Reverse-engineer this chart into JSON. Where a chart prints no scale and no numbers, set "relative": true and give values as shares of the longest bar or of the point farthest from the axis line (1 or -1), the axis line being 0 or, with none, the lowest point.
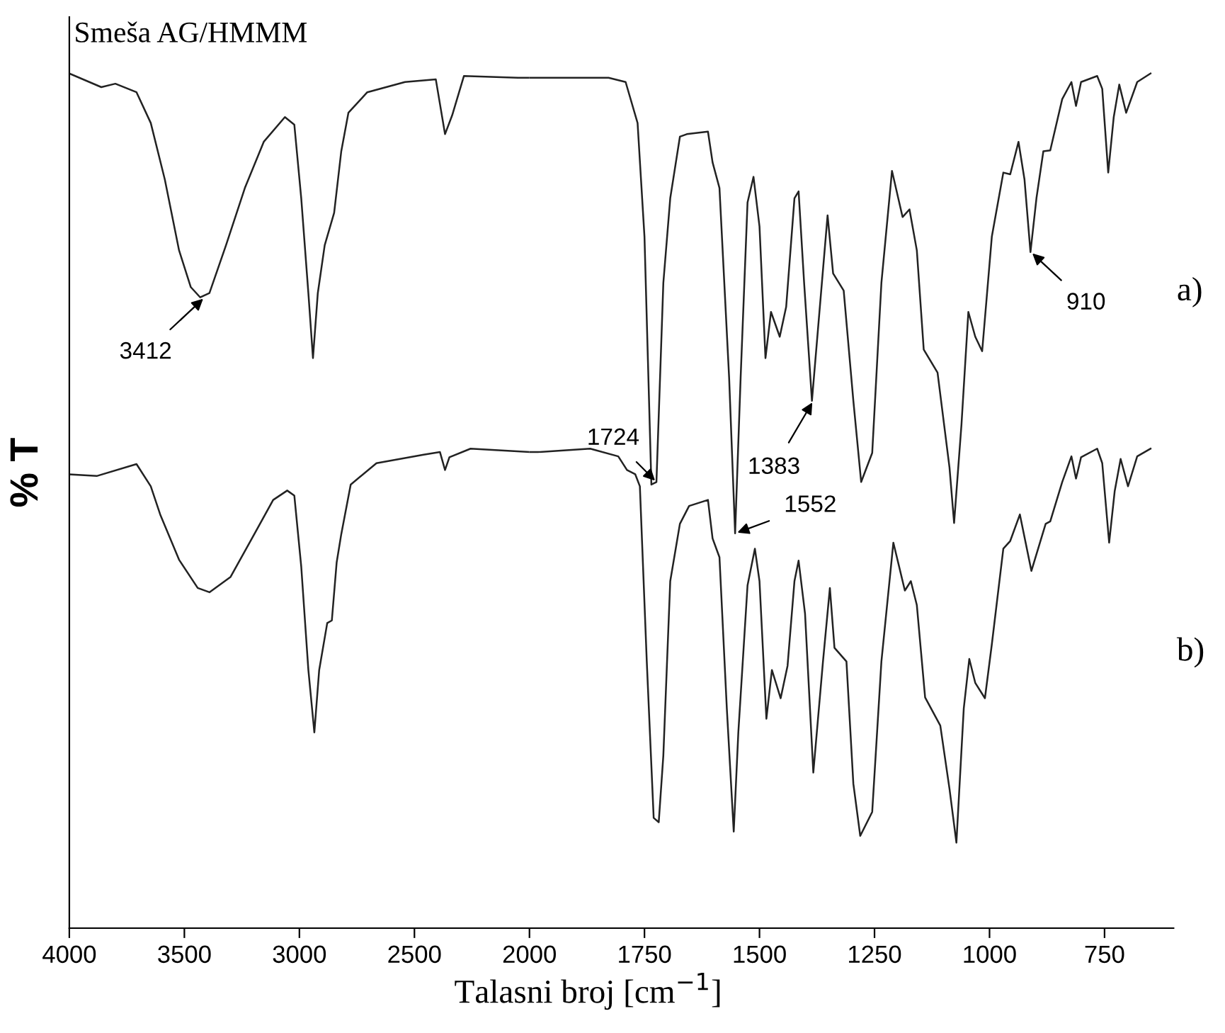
{
  "chart_data": [
    {
      "type": "line",
      "title": "Smeša AG/HMMM",
      "ylabel": "% T",
      "relative": true,
      "xlim": [
        4000,
        2000
      ],
      "xticks": [
        4000,
        3500,
        3000,
        2500,
        2000
      ],
      "grid": false,
      "marker": "none",
      "line_style": "solid",
      "annotations": [
        {
          "text": "3412",
          "x": 3412,
          "y": 0.738
        }
      ],
      "series": [
        {
          "color": "#222222",
          "x": [
            4000,
            3861,
            3800,
            3708,
            3646,
            3585,
            3523,
            3472,
            3431,
            3391,
            3319,
            3237,
            3155,
            3063,
            3022,
            2992,
            2961,
            2941,
            2920,
            2890,
            2849,
            2818,
            2787,
            2705,
            2541,
            2407,
            2367,
            2336,
            2285,
            2050,
            2000
          ],
          "values": [
            1.0,
            0.984,
            0.988,
            0.978,
            0.942,
            0.876,
            0.793,
            0.75,
            0.738,
            0.743,
            0.799,
            0.866,
            0.92,
            0.949,
            0.94,
            0.854,
            0.743,
            0.667,
            0.743,
            0.799,
            0.837,
            0.909,
            0.954,
            0.978,
            0.99,
            0.993,
            0.929,
            0.951,
            0.997,
            0.995,
            0.995
          ]
        },
        {
          "color": "#222222",
          "x": [
            4000,
            3881,
            3708,
            3646,
            3605,
            3523,
            3442,
            3391,
            3299,
            3196,
            3114,
            3053,
            3022,
            2992,
            2961,
            2935,
            2914,
            2879,
            2859,
            2838,
            2818,
            2777,
            2665,
            2460,
            2389,
            2367,
            2348,
            2256,
            2000
          ],
          "values": [
            0.531,
            0.529,
            0.543,
            0.517,
            0.484,
            0.431,
            0.398,
            0.393,
            0.411,
            0.461,
            0.501,
            0.512,
            0.506,
            0.423,
            0.302,
            0.229,
            0.302,
            0.357,
            0.36,
            0.428,
            0.461,
            0.519,
            0.544,
            0.554,
            0.557,
            0.536,
            0.551,
            0.561,
            0.557
          ]
        }
      ]
    },
    {
      "type": "line",
      "xlabel": "Talasni broj [cm$^{−1}$]",
      "relative": true,
      "xlim": [
        2000,
        600
      ],
      "xticks": [
        1750,
        1500,
        1250,
        1000,
        750
      ],
      "grid": false,
      "marker": "none",
      "line_style": "solid",
      "annotations": [
        {
          "text": "1724",
          "x": 1724,
          "y": 0.522
        },
        {
          "text": "1383",
          "x": 1383,
          "y": 0.617
        },
        {
          "text": "1552",
          "x": 1552,
          "y": 0.462
        },
        {
          "text": "910",
          "x": 910,
          "y": 0.791
        }
      ],
      "series": [
        {
          "name": "a)",
          "color": "#222222",
          "x": [
            2000,
            1828,
            1791,
            1765,
            1750,
            1735,
            1724,
            1709,
            1694,
            1673,
            1658,
            1612,
            1602,
            1587,
            1566,
            1553,
            1541,
            1526,
            1513,
            1500,
            1487,
            1475,
            1456,
            1442,
            1424,
            1415,
            1403,
            1386,
            1373,
            1352,
            1340,
            1317,
            1296,
            1279,
            1255,
            1235,
            1212,
            1189,
            1174,
            1158,
            1143,
            1113,
            1087,
            1077,
            1061,
            1046,
            1031,
            1016,
            995,
            970,
            955,
            937,
            924,
            911,
            898,
            883,
            868,
            842,
            822,
            812,
            801,
            766,
            755,
            742,
            730,
            718,
            703,
            679,
            650
          ],
          "values": [
            0.995,
            0.995,
            0.99,
            0.942,
            0.809,
            0.519,
            0.522,
            0.755,
            0.854,
            0.926,
            0.929,
            0.932,
            0.896,
            0.866,
            0.644,
            0.462,
            0.644,
            0.849,
            0.879,
            0.821,
            0.667,
            0.721,
            0.692,
            0.727,
            0.854,
            0.862,
            0.755,
            0.617,
            0.7,
            0.834,
            0.766,
            0.746,
            0.617,
            0.522,
            0.556,
            0.755,
            0.886,
            0.832,
            0.841,
            0.793,
            0.677,
            0.65,
            0.539,
            0.474,
            0.589,
            0.721,
            0.692,
            0.675,
            0.809,
            0.884,
            0.882,
            0.92,
            0.876,
            0.791,
            0.854,
            0.909,
            0.91,
            0.97,
            0.99,
            0.962,
            0.99,
            0.997,
            0.982,
            0.884,
            0.949,
            0.987,
            0.954,
            0.99,
            1.0
          ]
        },
        {
          "name": "b)",
          "color": "#222222",
          "x": [
            2000,
            1982,
            1868,
            1807,
            1788,
            1770,
            1760,
            1745,
            1730,
            1719,
            1709,
            1694,
            1673,
            1653,
            1612,
            1602,
            1587,
            1571,
            1556,
            1546,
            1526,
            1510,
            1500,
            1485,
            1473,
            1454,
            1439,
            1424,
            1415,
            1401,
            1383,
            1362,
            1347,
            1337,
            1311,
            1296,
            1281,
            1255,
            1235,
            1209,
            1184,
            1171,
            1158,
            1140,
            1107,
            1087,
            1072,
            1056,
            1044,
            1031,
            1010,
            995,
            970,
            955,
            934,
            909,
            878,
            868,
            842,
            822,
            812,
            801,
            766,
            755,
            740,
            728,
            715,
            699,
            679,
            650
          ],
          "values": [
            0.557,
            0.557,
            0.561,
            0.552,
            0.536,
            0.531,
            0.517,
            0.312,
            0.129,
            0.124,
            0.202,
            0.406,
            0.473,
            0.494,
            0.501,
            0.456,
            0.434,
            0.257,
            0.113,
            0.229,
            0.401,
            0.444,
            0.406,
            0.245,
            0.302,
            0.269,
            0.307,
            0.406,
            0.43,
            0.368,
            0.182,
            0.312,
            0.398,
            0.328,
            0.312,
            0.169,
            0.108,
            0.136,
            0.312,
            0.451,
            0.395,
            0.406,
            0.378,
            0.27,
            0.237,
            0.163,
            0.1,
            0.257,
            0.315,
            0.287,
            0.269,
            0.332,
            0.444,
            0.453,
            0.484,
            0.418,
            0.473,
            0.476,
            0.522,
            0.552,
            0.526,
            0.551,
            0.561,
            0.544,
            0.451,
            0.511,
            0.549,
            0.517,
            0.552,
            0.561
          ]
        }
      ]
    }
  ]
}
